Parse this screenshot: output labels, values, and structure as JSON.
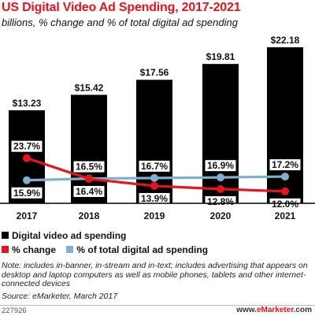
{
  "title": "US Digital Video Ad Spending, 2017-2021",
  "subtitle": "billions, % change and % of total digital ad spending",
  "chart_data": {
    "type": "bar",
    "title": "US Digital Video Ad Spending, 2017-2021",
    "subtitle": "billions, % change and % of total digital ad spending",
    "categories": [
      "2017",
      "2018",
      "2019",
      "2020",
      "2021"
    ],
    "series": [
      {
        "name": "Digital video ad spending",
        "type": "bar",
        "color": "#000000",
        "values": [
          13.23,
          15.42,
          17.56,
          19.81,
          22.18
        ],
        "labels": [
          "$13.23",
          "$15.42",
          "$17.56",
          "$19.81",
          "$22.18"
        ]
      },
      {
        "name": "% change",
        "type": "line",
        "color": "#e8131b",
        "values": [
          23.7,
          16.4,
          13.9,
          12.8,
          12.0
        ],
        "labels": [
          "23.7%",
          "16.4%",
          "13.9%",
          "12.8%",
          "12.0%"
        ]
      },
      {
        "name": "% of total digital ad spending",
        "type": "line",
        "color": "#7fb1cf",
        "values": [
          15.9,
          16.5,
          16.7,
          16.9,
          17.2
        ],
        "labels": [
          "15.9%",
          "16.5%",
          "16.7%",
          "16.9%",
          "17.2%"
        ]
      }
    ],
    "ylim": [
      0,
      22.18
    ],
    "grid": false,
    "legend_position": "bottom-left"
  },
  "legend": {
    "bar_label": "Digital video ad spending",
    "change_label": "% change",
    "share_label": "% of total digital ad spending"
  },
  "note": "Note: includes in-banner, in-stream and in-text; includes advertising that appears on desktop and laptop computers as well as mobile phones, tablets and other internet-connected devices",
  "source": "Source: eMarketer, March 2017",
  "chart_id": "227926",
  "brand": {
    "part1": "www.",
    "part2": "eMarketer",
    "part3": ".com"
  },
  "colors": {
    "title": "#e8131b",
    "bar": "#000000",
    "change": "#e8131b",
    "share": "#7fb1cf"
  }
}
